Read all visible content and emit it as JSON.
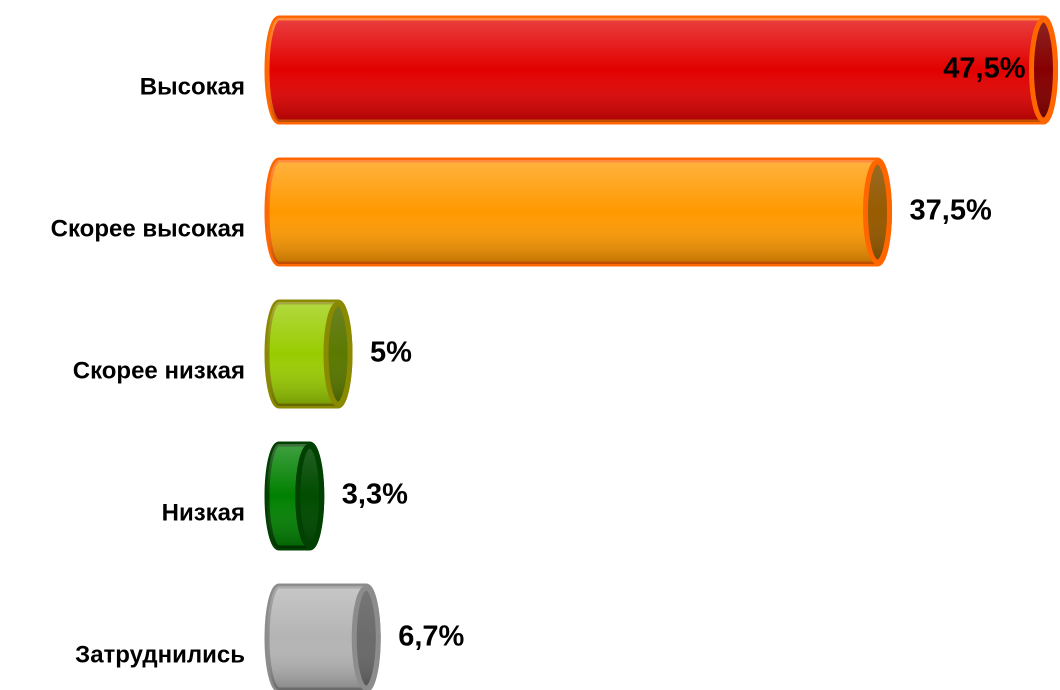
{
  "chart_data": {
    "type": "bar",
    "orientation": "horizontal",
    "categories": [
      "Высокая",
      "Скорее высокая",
      "Скорее низкая",
      "Низкая",
      "Затруднились"
    ],
    "values": [
      47.5,
      37.5,
      5,
      3.3,
      6.7
    ],
    "value_labels": [
      "47,5%",
      "37,5%",
      "5%",
      "3,3%",
      "6,7%"
    ],
    "colors": [
      "#e20000",
      "#ff9900",
      "#99cc00",
      "#008000",
      "#b4b4b4"
    ],
    "edge_colors": [
      "#ff6600",
      "#ff6600",
      "#8a8a00",
      "#004000",
      "#8c8c8c"
    ]
  }
}
